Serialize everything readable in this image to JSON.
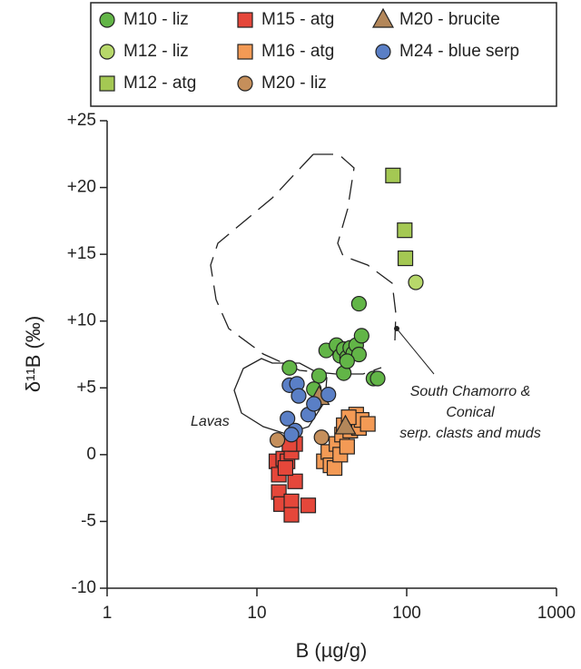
{
  "chart_data": {
    "type": "scatter",
    "x_label": "B (µg/g)",
    "y_label": "δ¹¹B (‰)",
    "xscale": "log",
    "xlim": [
      1,
      1000
    ],
    "xticks": [
      1,
      10,
      100,
      1000
    ],
    "ylim": [
      -10,
      25
    ],
    "yticks": [
      {
        "value": 25,
        "label": "+25"
      },
      {
        "value": 20,
        "label": "+20"
      },
      {
        "value": 15,
        "label": "+15"
      },
      {
        "value": 10,
        "label": "+10"
      },
      {
        "value": 5,
        "label": "+5"
      },
      0,
      -5,
      -10
    ],
    "annotations": [
      "Lavas",
      "South Chamorro &",
      "Conical",
      "serp. clasts and muds"
    ],
    "series": [
      {
        "name": "M10 - liz",
        "color": "#62b547",
        "marker": "circle",
        "x": [
          16.5,
          26,
          29,
          34,
          36,
          38,
          40,
          42,
          44,
          46,
          48,
          50,
          48,
          38,
          40,
          60,
          64,
          24
        ],
        "y": [
          6.5,
          5.9,
          7.8,
          8.2,
          7.4,
          7.9,
          7.3,
          8.0,
          7.6,
          8.2,
          7.5,
          8.9,
          11.3,
          6.1,
          7.0,
          5.7,
          5.7,
          4.9
        ]
      },
      {
        "name": "M12 - liz",
        "color": "#b7d86a",
        "marker": "circle",
        "x": [
          115
        ],
        "y": [
          12.9
        ]
      },
      {
        "name": "M12 - atg",
        "color": "#a4c853",
        "marker": "square",
        "x": [
          81,
          97,
          98
        ],
        "y": [
          20.9,
          16.8,
          14.7
        ]
      },
      {
        "name": "M15 - atg",
        "color": "#e5473a",
        "marker": "square",
        "x": [
          13.5,
          14,
          15,
          16,
          17,
          18,
          14,
          14.5,
          17,
          18,
          17,
          22,
          15.5,
          16.5
        ],
        "y": [
          -0.5,
          -1.5,
          -0.3,
          -0.5,
          0.2,
          0.8,
          -2.8,
          -3.7,
          -3.5,
          -2,
          -4.5,
          -3.8,
          -1,
          0.8
        ]
      },
      {
        "name": "M16 - atg",
        "color": "#f39a55",
        "marker": "square",
        "x": [
          28,
          30,
          31,
          33,
          34,
          36,
          37,
          38,
          40,
          42,
          44,
          46,
          48,
          50,
          55,
          41
        ],
        "y": [
          -0.5,
          0.2,
          -0.8,
          -1.0,
          0.8,
          0,
          1.5,
          2.2,
          0.6,
          1.8,
          2.5,
          3.0,
          2.0,
          2.6,
          2.3,
          2.8
        ]
      },
      {
        "name": "M20 - liz",
        "color": "#c58f5b",
        "marker": "circle",
        "x": [
          13.7,
          27
        ],
        "y": [
          1.1,
          1.3
        ]
      },
      {
        "name": "M20 - brucite",
        "color": "#b3875a",
        "marker": "triangle",
        "x": [
          26,
          39
        ],
        "y": [
          4.3,
          2.1
        ]
      },
      {
        "name": "M24 - blue serp",
        "color": "#5a7fc6",
        "marker": "circle",
        "x": [
          16.5,
          18.5,
          19,
          16,
          18,
          17,
          22,
          24,
          30
        ],
        "y": [
          5.2,
          5.3,
          4.4,
          2.7,
          1.8,
          1.5,
          3.0,
          3.8,
          4.5
        ]
      }
    ]
  }
}
